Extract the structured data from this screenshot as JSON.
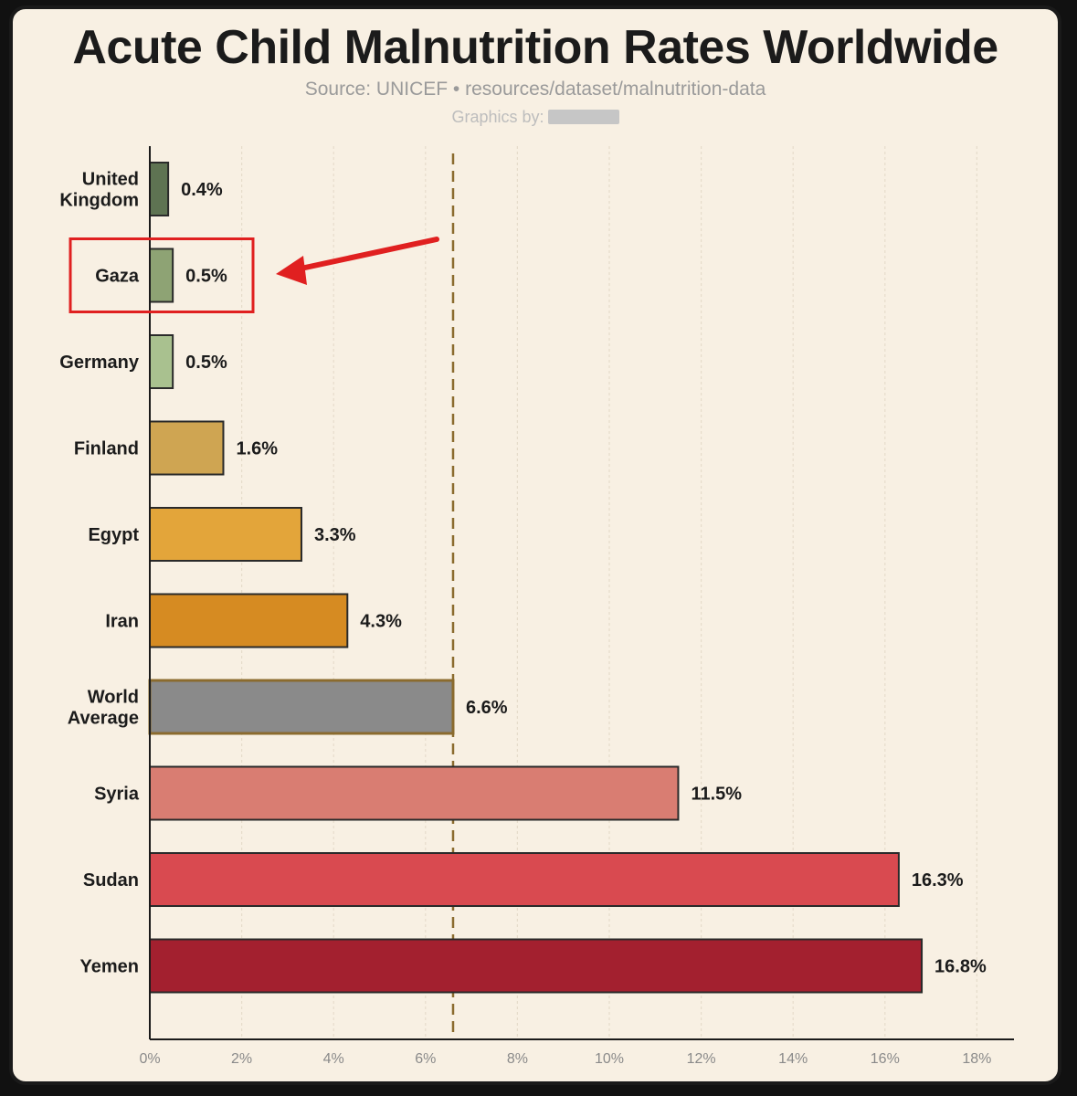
{
  "header": {
    "title": "Acute Child Malnutrition Rates Worldwide",
    "source": "Source: UNICEF • resources/dataset/malnutrition-data",
    "credit": "Graphics by:"
  },
  "chart_data": {
    "type": "bar",
    "orientation": "horizontal",
    "title": "Acute Child Malnutrition Rates Worldwide",
    "categories": [
      [
        "United",
        "Kingdom"
      ],
      [
        "Gaza"
      ],
      [
        "Germany"
      ],
      [
        "Finland"
      ],
      [
        "Egypt"
      ],
      [
        "Iran"
      ],
      [
        "World",
        "Average"
      ],
      [
        "Syria"
      ],
      [
        "Sudan"
      ],
      [
        "Yemen"
      ]
    ],
    "values": [
      0.4,
      0.5,
      0.5,
      1.6,
      3.3,
      4.3,
      6.6,
      11.5,
      16.3,
      16.8
    ],
    "value_labels": [
      "0.4%",
      "0.5%",
      "0.5%",
      "1.6%",
      "3.3%",
      "4.3%",
      "6.6%",
      "11.5%",
      "16.3%",
      "16.8%"
    ],
    "colors": [
      "#5e7352",
      "#8ea374",
      "#a9c18f",
      "#cfa552",
      "#e3a53a",
      "#d68b22",
      "#8a8a8a",
      "#d97d72",
      "#d94a50",
      "#a3202f"
    ],
    "xlim": [
      0,
      18
    ],
    "xticks": [
      0,
      2,
      4,
      6,
      8,
      10,
      12,
      14,
      16,
      18
    ],
    "xtick_labels": [
      "0%",
      "2%",
      "4%",
      "6%",
      "8%",
      "10%",
      "12%",
      "14%",
      "16%",
      "18%"
    ],
    "reference_line": {
      "value": 6.6,
      "style": "dashed",
      "color": "#8b6b2e"
    },
    "highlight": {
      "category_index": 1,
      "box_color": "#e02020",
      "arrow_color": "#e02020"
    },
    "grid": "vertical-dashed"
  }
}
